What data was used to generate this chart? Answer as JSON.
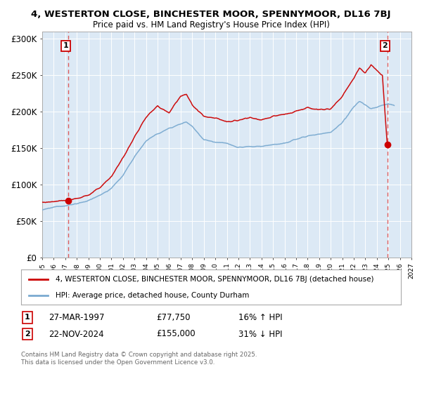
{
  "title_line1": "4, WESTERTON CLOSE, BINCHESTER MOOR, SPENNYMOOR, DL16 7BJ",
  "title_line2": "Price paid vs. HM Land Registry's House Price Index (HPI)",
  "plot_bg_color": "#dce9f5",
  "ylim": [
    0,
    310000
  ],
  "yticks": [
    0,
    50000,
    100000,
    150000,
    200000,
    250000,
    300000
  ],
  "ytick_labels": [
    "£0",
    "£50K",
    "£100K",
    "£150K",
    "£200K",
    "£250K",
    "£300K"
  ],
  "xmin_year": 1995,
  "xmax_year": 2027,
  "xtick_years": [
    1995,
    1996,
    1997,
    1998,
    1999,
    2000,
    2001,
    2002,
    2003,
    2004,
    2005,
    2006,
    2007,
    2008,
    2009,
    2010,
    2011,
    2012,
    2013,
    2014,
    2015,
    2016,
    2017,
    2018,
    2019,
    2020,
    2021,
    2022,
    2023,
    2024,
    2025,
    2026,
    2027
  ],
  "sale1_x": 1997.24,
  "sale1_y": 77750,
  "sale2_x": 2024.9,
  "sale2_y": 155000,
  "legend_line1": "4, WESTERTON CLOSE, BINCHESTER MOOR, SPENNYMOOR, DL16 7BJ (detached house)",
  "legend_line2": "HPI: Average price, detached house, County Durham",
  "ann1_box": "1",
  "ann1_date": "27-MAR-1997",
  "ann1_price": "£77,750",
  "ann1_hpi": "16% ↑ HPI",
  "ann2_box": "2",
  "ann2_date": "22-NOV-2024",
  "ann2_price": "£155,000",
  "ann2_hpi": "31% ↓ HPI",
  "footnote": "Contains HM Land Registry data © Crown copyright and database right 2025.\nThis data is licensed under the Open Government Licence v3.0.",
  "line_color_red": "#cc0000",
  "line_color_blue": "#7aaad0",
  "dashed_line_color": "#dd4444",
  "grid_color": "#ffffff",
  "hatch_start": 2025.08
}
